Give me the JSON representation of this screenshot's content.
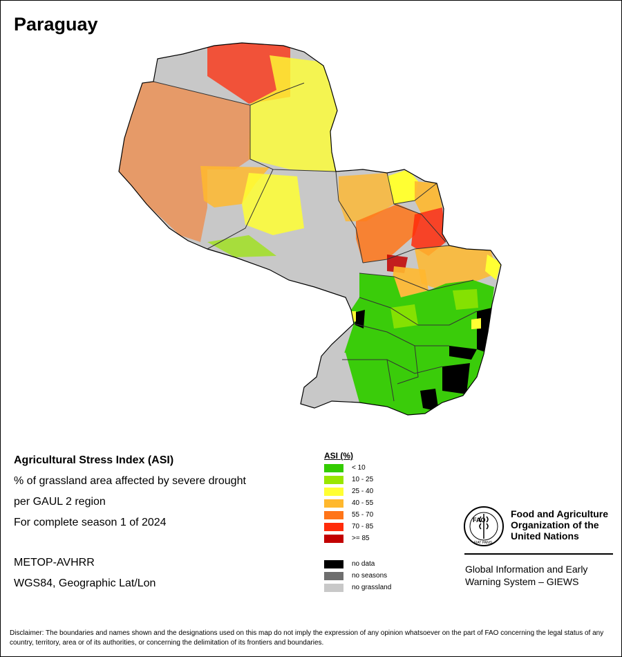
{
  "map": {
    "title": "Paraguay",
    "country": "Paraguay",
    "projection": "WGS84, Geographic Lat/Lon",
    "regions_by_asi_class": {
      "north_west_chaco": "55 - 70",
      "far_north": "70 - 85",
      "north_central_alto_paraguay": "25 - 40",
      "central_chaco": "40 - 55",
      "southern_chaco_presidente_hayes": "no grassland",
      "north_east_amambay_concepcion": "40 - 55",
      "canindeyu_san_pedro": "70 - 85",
      "alto_parana": "40 - 55",
      "eastern_region_south": "< 10",
      "southwest_neembucu": "no grassland"
    }
  },
  "info": {
    "index_title": "Agricultural Stress Index (ASI)",
    "line2": "% of grassland area affected by severe drought",
    "line3": "per GAUL 2 region",
    "line4": "For complete season 1 of 2024",
    "sensor": "METOP-AVHRR",
    "projection": "WGS84, Geographic Lat/Lon"
  },
  "legend": {
    "title": "ASI (%)",
    "classes": [
      {
        "label": "< 10",
        "color": "#33cc00"
      },
      {
        "label": "10 - 25",
        "color": "#99e600"
      },
      {
        "label": "25 - 40",
        "color": "#ffff33"
      },
      {
        "label": "40 - 55",
        "color": "#ffb82e"
      },
      {
        "label": "55 - 70",
        "color": "#ff7519"
      },
      {
        "label": "70 - 85",
        "color": "#ff2b0a"
      },
      {
        "label": ">= 85",
        "color": "#c20000"
      }
    ],
    "other": [
      {
        "label": "no data",
        "color": "#000000"
      },
      {
        "label": "no seasons",
        "color": "#6e6e6e"
      },
      {
        "label": "no grassland",
        "color": "#c8c8c8"
      }
    ]
  },
  "logo": {
    "letters": "FAO",
    "motto": "FIAT PANIS",
    "org_line1": "Food and Agriculture",
    "org_line2": "Organization of the",
    "org_line3": "United Nations",
    "giews_line1": "Global Information and Early",
    "giews_line2": "Warning System – GIEWS"
  },
  "disclaimer": "Disclaimer: The boundaries and names shown and the designations used on this map do not imply the expression of any opinion whatsoever on the part of FAO concerning the legal status of any country, territory, area or of its authorities, or concerning the delimitation of its frontiers and boundaries."
}
